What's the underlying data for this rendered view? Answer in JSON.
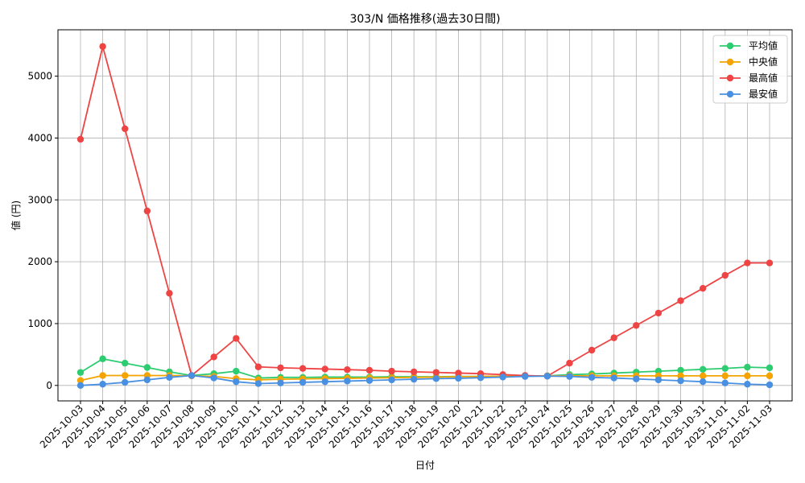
{
  "chart_data": {
    "type": "line",
    "title": "303/N 価格推移(過去30日間)",
    "xlabel": "日付",
    "ylabel": "値 (円)",
    "ylim": [
      -250,
      5750
    ],
    "yticks": [
      0,
      1000,
      2000,
      3000,
      4000,
      5000
    ],
    "grid": true,
    "legend_position": "top-right",
    "categories": [
      "2025-10-03",
      "2025-10-04",
      "2025-10-05",
      "2025-10-06",
      "2025-10-07",
      "2025-10-08",
      "2025-10-09",
      "2025-10-10",
      "2025-10-11",
      "2025-10-12",
      "2025-10-13",
      "2025-10-14",
      "2025-10-15",
      "2025-10-16",
      "2025-10-17",
      "2025-10-18",
      "2025-10-19",
      "2025-10-20",
      "2025-10-21",
      "2025-10-22",
      "2025-10-23",
      "2025-10-24",
      "2025-10-25",
      "2025-10-26",
      "2025-10-27",
      "2025-10-28",
      "2025-10-29",
      "2025-10-30",
      "2025-10-31",
      "2025-11-01",
      "2025-11-02",
      "2025-11-03"
    ],
    "series": [
      {
        "name": "平均値",
        "color": "#2ecc71",
        "values": [
          210,
          430,
          360,
          290,
          220,
          160,
          190,
          230,
          120,
          130,
          130,
          135,
          135,
          135,
          140,
          140,
          140,
          145,
          145,
          150,
          155,
          155,
          175,
          185,
          200,
          215,
          230,
          245,
          260,
          275,
          295,
          285
        ]
      },
      {
        "name": "中央値",
        "color": "#f5a300",
        "values": [
          80,
          160,
          160,
          160,
          160,
          155,
          145,
          110,
          90,
          100,
          105,
          110,
          115,
          120,
          125,
          130,
          135,
          140,
          145,
          150,
          150,
          155,
          155,
          155,
          155,
          155,
          155,
          155,
          155,
          155,
          155,
          155
        ]
      },
      {
        "name": "最高値",
        "color": "#ee4444",
        "values": [
          3980,
          5480,
          4150,
          2820,
          1490,
          160,
          460,
          760,
          300,
          285,
          275,
          265,
          255,
          245,
          230,
          220,
          210,
          200,
          190,
          175,
          160,
          150,
          360,
          570,
          770,
          970,
          1170,
          1370,
          1570,
          1780,
          1980,
          1980
        ]
      },
      {
        "name": "最安値",
        "color": "#4a90e2",
        "values": [
          0,
          20,
          50,
          90,
          130,
          160,
          120,
          60,
          30,
          40,
          50,
          60,
          70,
          80,
          90,
          100,
          110,
          115,
          125,
          135,
          145,
          150,
          145,
          130,
          120,
          105,
          90,
          75,
          60,
          40,
          20,
          10
        ]
      }
    ]
  }
}
